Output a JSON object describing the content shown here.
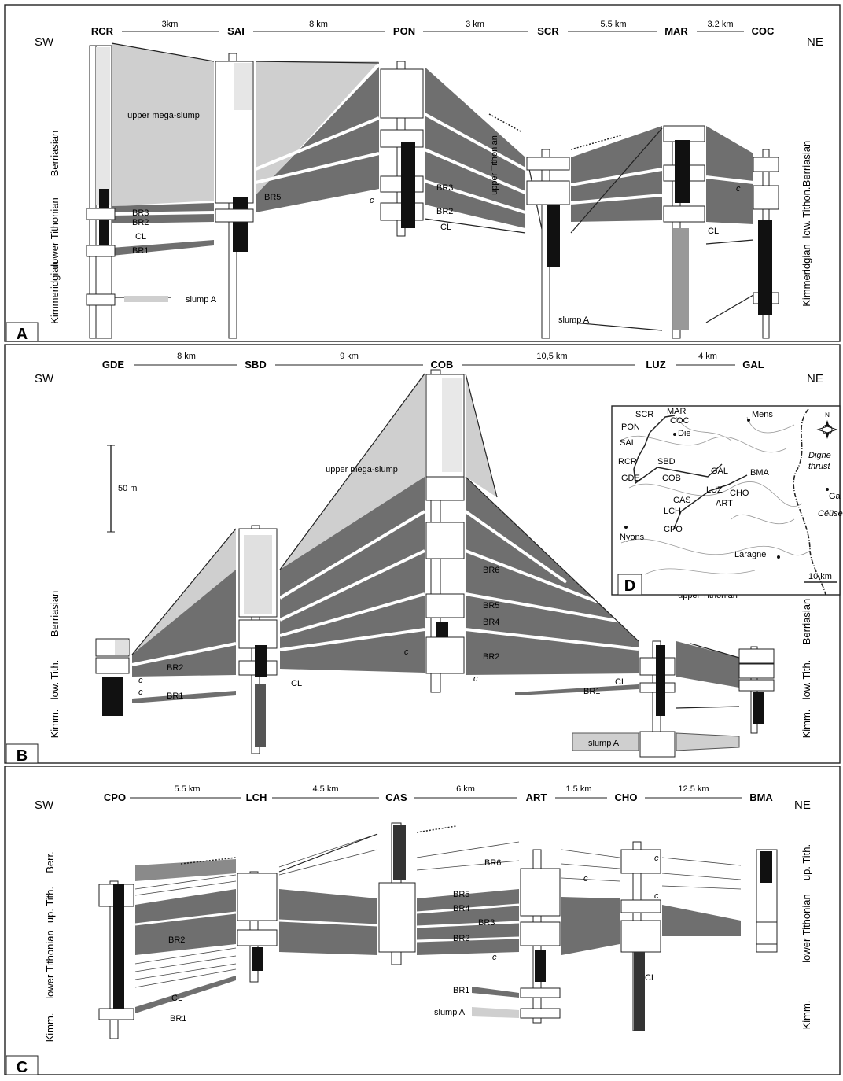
{
  "colors": {
    "dark_gray": "#6f6f6f",
    "light_gray": "#cfcfcf",
    "line": "#222222",
    "background": "#ffffff"
  },
  "panels": [
    {
      "letter": "A",
      "orientation": {
        "left": "SW",
        "right": "NE"
      },
      "sections": [
        "RCR",
        "SAI",
        "PON",
        "SCR",
        "MAR",
        "COC"
      ],
      "distances": [
        "3km",
        "8 km",
        "3 km",
        "5.5 km",
        "3.2 km"
      ],
      "units_left": [
        "Berriasian",
        "lower Tithonian",
        "Kimmeridgian"
      ],
      "units_right": [
        "Berriasian",
        "low. Tithon.",
        "Kimmeridgian"
      ],
      "labels": {
        "mega_slump": "upper mega-slump",
        "br3": "BR3",
        "br2": "BR2",
        "br1": "BR1",
        "cl": "CL",
        "br5": "BR5",
        "br3_pon": "BR3",
        "br2_pon": "BR2",
        "cl_pon": "CL",
        "upper_tith": "upper Tithonian",
        "cl_mar": "CL",
        "slump_a": "slump A",
        "slump_a_mar": "slump A",
        "c1": "c",
        "c2": "c"
      }
    },
    {
      "letter": "B",
      "orientation": {
        "left": "SW",
        "right": "NE"
      },
      "sections": [
        "GDE",
        "SBD",
        "COB",
        "LUZ",
        "GAL"
      ],
      "distances": [
        "8 km",
        "9 km",
        "10,5 km",
        "4 km"
      ],
      "scale_bar": "50 m",
      "units_left": [
        "Berriasian",
        "low. Tith.",
        "Kimm."
      ],
      "units_right": [
        "Berriasian",
        "low. Tith.",
        "Kimm."
      ],
      "labels": {
        "mega_slump": "upper mega-slump",
        "br6": "BR6",
        "br5": "BR5",
        "br4": "BR4",
        "br2": "BR2",
        "br2_gde": "BR2",
        "br1": "BR1",
        "br1_luz": "BR1",
        "cl": "CL",
        "cl_luz": "CL",
        "upper_tith": "upper Tithonian",
        "slump_a": "slump A",
        "c1": "c",
        "c2": "c",
        "c3": "c",
        "c4": "c"
      }
    },
    {
      "letter": "C",
      "orientation": {
        "left": "SW",
        "right": "NE"
      },
      "sections": [
        "CPO",
        "LCH",
        "CAS",
        "ART",
        "CHO",
        "BMA"
      ],
      "distances": [
        "5.5 km",
        "4.5 km",
        "6 km",
        "1.5 km",
        "12.5 km"
      ],
      "units_left": [
        "Berr.",
        "up. Tith.",
        "lower Tithonian",
        "Kimm."
      ],
      "units_right": [
        "up. Tith.",
        "lower Tithonian",
        "Kimm."
      ],
      "labels": {
        "br6": "BR6",
        "br5": "BR5",
        "br4": "BR4",
        "br3": "BR3",
        "br2": "BR2",
        "br2_cpo": "BR2",
        "br1": "BR1",
        "br1_art": "BR1",
        "cl": "CL",
        "cl_cho": "CL",
        "slump_a": "slump A",
        "c1": "c",
        "c2": "c",
        "c3": "c",
        "c4": "c"
      }
    }
  ],
  "map": {
    "letter": "D",
    "scale": "10 km",
    "places": [
      "SCR",
      "MAR",
      "COC",
      "PON",
      "SAI",
      "Die",
      "Mens",
      "RCR",
      "SBD",
      "GAL",
      "GDE",
      "COB",
      "LUZ",
      "BMA",
      "CAS",
      "CHO",
      "ART",
      "LCH",
      "CPO",
      "Nyons",
      "Laragne",
      "Ga"
    ],
    "thrust": "Digne thrust",
    "ceuse": "Céüse",
    "north": "N"
  },
  "icons": [
    "compass-rose-icon"
  ]
}
